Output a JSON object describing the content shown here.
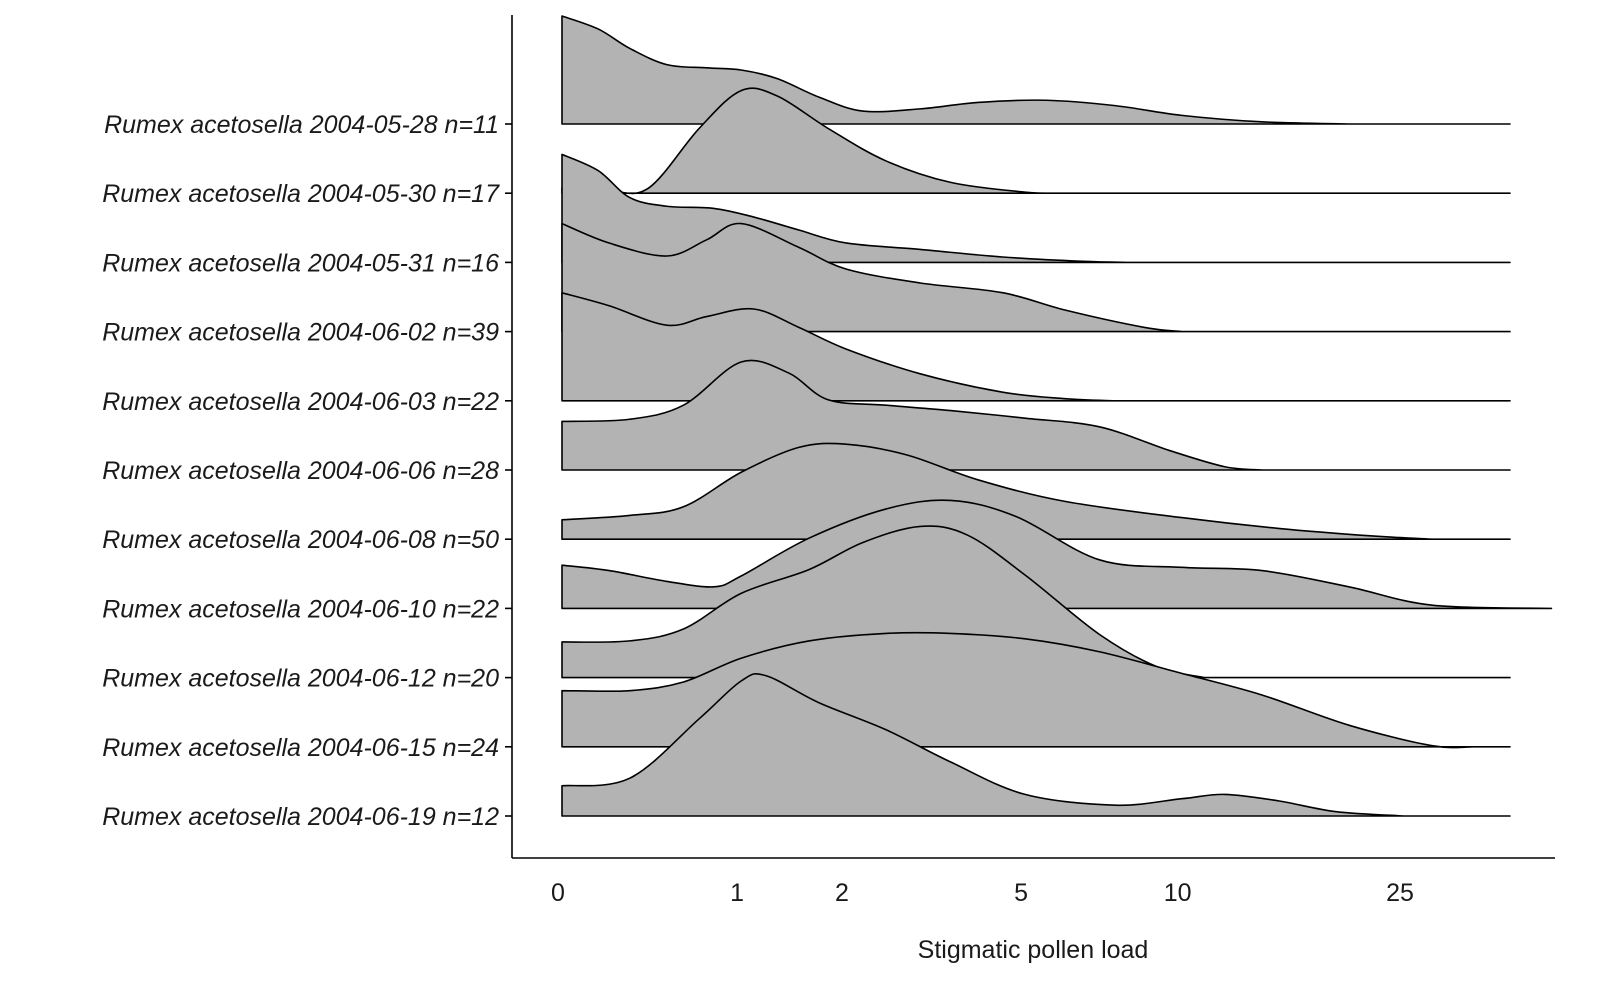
{
  "chart_data": {
    "type": "ridgeline",
    "xlabel": "Stigmatic pollen load",
    "ylabel": "",
    "x_scale": "log1p",
    "x_ticks": [
      0,
      1,
      2,
      5,
      10,
      25
    ],
    "x_tick_labels": [
      "0",
      "1",
      "2",
      "5",
      "10",
      "25"
    ],
    "xlim": [
      0,
      45
    ],
    "grid": false,
    "legend": "none",
    "fill_color": "#b3b3b3",
    "line_color": "#000000",
    "series": [
      {
        "name": "Rumex acetosella 2004-05-28 n=11",
        "x": [
          0,
          0.15,
          0.3,
          0.5,
          0.75,
          1.0,
          1.3,
          1.7,
          2.2,
          3.0,
          4.0,
          5.5,
          7.5,
          10,
          14,
          20
        ],
        "density": [
          1.0,
          0.88,
          0.7,
          0.55,
          0.52,
          0.5,
          0.42,
          0.25,
          0.12,
          0.14,
          0.2,
          0.22,
          0.17,
          0.08,
          0.02,
          0
        ]
      },
      {
        "name": "Rumex acetosella 2004-05-30 n=17",
        "x": [
          0,
          0.2,
          0.4,
          0.7,
          1.0,
          1.3,
          1.8,
          2.5,
          3.5,
          5.0,
          6.0
        ],
        "density": [
          0.05,
          0.02,
          0.05,
          0.6,
          0.95,
          0.9,
          0.6,
          0.3,
          0.1,
          0.01,
          0
        ]
      },
      {
        "name": "Rumex acetosella 2004-05-31 n=16",
        "x": [
          0,
          0.15,
          0.3,
          0.5,
          0.8,
          1.1,
          1.5,
          2.0,
          3.0,
          4.5,
          6.5,
          8.0
        ],
        "density": [
          1.0,
          0.85,
          0.6,
          0.52,
          0.5,
          0.42,
          0.3,
          0.18,
          0.12,
          0.05,
          0.01,
          0
        ]
      },
      {
        "name": "Rumex acetosella 2004-06-02 n=39",
        "x": [
          0,
          0.2,
          0.5,
          0.75,
          1.0,
          1.5,
          2.0,
          3.0,
          4.5,
          6.0,
          8.5,
          10.0
        ],
        "density": [
          1.0,
          0.82,
          0.7,
          0.85,
          1.0,
          0.78,
          0.58,
          0.45,
          0.36,
          0.2,
          0.04,
          0
        ]
      },
      {
        "name": "Rumex acetosella 2004-06-03 n=22",
        "x": [
          0,
          0.2,
          0.5,
          0.75,
          1.1,
          1.5,
          2.0,
          3.0,
          4.5,
          6.0,
          7.5
        ],
        "density": [
          1.0,
          0.88,
          0.7,
          0.78,
          0.85,
          0.68,
          0.48,
          0.25,
          0.08,
          0.02,
          0
        ]
      },
      {
        "name": "Rumex acetosella 2004-06-06 n=28",
        "x": [
          0,
          0.3,
          0.6,
          1.0,
          1.4,
          1.8,
          2.5,
          3.5,
          5.0,
          7.0,
          9.5,
          12.0,
          14.0
        ],
        "density": [
          0.45,
          0.47,
          0.6,
          1.0,
          0.9,
          0.65,
          0.6,
          0.55,
          0.48,
          0.4,
          0.18,
          0.03,
          0
        ]
      },
      {
        "name": "Rumex acetosella 2004-06-08 n=50",
        "x": [
          0,
          0.3,
          0.6,
          1.0,
          1.5,
          2.0,
          2.8,
          4.0,
          6.0,
          10.0,
          15.0,
          22.0,
          28.0
        ],
        "density": [
          0.18,
          0.22,
          0.3,
          0.62,
          0.85,
          0.88,
          0.78,
          0.55,
          0.35,
          0.2,
          0.1,
          0.03,
          0
        ]
      },
      {
        "name": "Rumex acetosella 2004-06-10 n=22",
        "x": [
          0,
          0.2,
          0.5,
          0.8,
          1.0,
          1.6,
          2.5,
          3.5,
          4.8,
          7.0,
          10.0,
          14.0,
          20.0,
          28.0,
          45.0
        ],
        "density": [
          0.4,
          0.35,
          0.25,
          0.2,
          0.3,
          0.65,
          0.92,
          1.0,
          0.85,
          0.45,
          0.38,
          0.35,
          0.2,
          0.03,
          0
        ]
      },
      {
        "name": "Rumex acetosella 2004-06-12 n=20",
        "x": [
          0,
          0.3,
          0.6,
          1.0,
          1.6,
          2.2,
          3.0,
          3.8,
          5.0,
          7.0,
          9.0,
          11.0
        ],
        "density": [
          0.33,
          0.34,
          0.45,
          0.78,
          1.0,
          1.25,
          1.4,
          1.32,
          0.95,
          0.4,
          0.1,
          0
        ]
      },
      {
        "name": "Rumex acetosella 2004-06-15 n=24",
        "x": [
          0,
          0.3,
          0.6,
          1.0,
          1.6,
          2.5,
          3.5,
          5.0,
          7.0,
          10.0,
          14.0,
          20.0,
          28.0,
          33.0
        ],
        "density": [
          0.52,
          0.52,
          0.6,
          0.82,
          0.98,
          1.05,
          1.05,
          1.0,
          0.88,
          0.68,
          0.48,
          0.2,
          0.01,
          0
        ]
      },
      {
        "name": "Rumex acetosella 2004-06-19 n=12",
        "x": [
          0,
          0.3,
          0.7,
          1.0,
          1.2,
          1.7,
          2.5,
          3.5,
          5.0,
          7.5,
          10.0,
          12.0,
          15.0,
          19.0,
          25.0
        ],
        "density": [
          0.28,
          0.35,
          0.9,
          1.25,
          1.3,
          1.05,
          0.8,
          0.5,
          0.2,
          0.1,
          0.16,
          0.2,
          0.14,
          0.04,
          0
        ]
      }
    ]
  }
}
